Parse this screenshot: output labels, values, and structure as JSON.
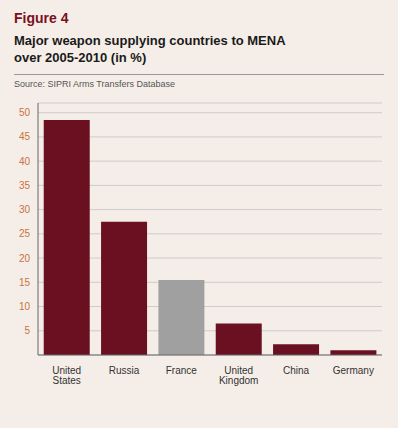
{
  "chart_data": {
    "type": "bar",
    "title": [
      "Major weapon supplying countries to MENA",
      "over 2005-2010 (in %)"
    ],
    "annotations": [
      "Figure 4",
      "Source: SIPRI Arms Transfers Database"
    ],
    "categories": [
      "United States",
      "Russia",
      "France",
      "United Kingdom",
      "China",
      "Germany"
    ],
    "values": [
      48.5,
      27.5,
      15.5,
      6.5,
      2.2,
      1.0
    ],
    "colors": [
      "#6b1020",
      "#6b1020",
      "#a0a0a0",
      "#6b1020",
      "#6b1020",
      "#6b1020"
    ],
    "ylim": [
      0,
      52
    ],
    "yticks": [
      5,
      10,
      15,
      20,
      25,
      30,
      35,
      40,
      45,
      50
    ],
    "grid": true
  }
}
